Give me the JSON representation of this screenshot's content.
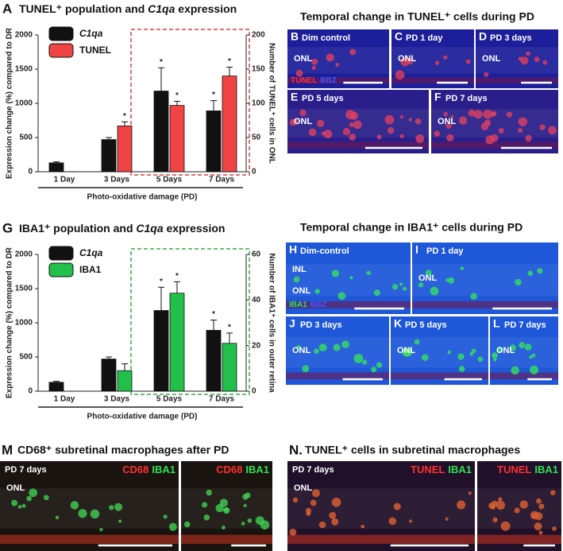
{
  "chart_data": [
    {
      "type": "bar",
      "panel": "A",
      "title": [
        {
          "text": "TUNEL⁺ population and "
        },
        {
          "text": "C1qa",
          "italic": true
        },
        {
          "text": " expression"
        }
      ],
      "ylabel": "Expression change (%) compared to DR",
      "y2label": "Number of TUNEL⁺ cells in ONL",
      "xlabel": "Photo-oxidative damage (PD)",
      "categories": [
        "1 Day",
        "3 Days",
        "5 Days",
        "7 Days"
      ],
      "series": [
        {
          "name": "C1qa",
          "italic": true,
          "color": "#111111",
          "values": [
            130,
            470,
            1180,
            890
          ],
          "errors": [
            15,
            30,
            340,
            150
          ],
          "markers": [
            null,
            null,
            "*",
            "*"
          ]
        },
        {
          "name": "TUNEL",
          "color": "#f04444",
          "axis": "y2",
          "values": [
            0,
            67,
            97,
            140
          ],
          "errors": [
            0,
            6,
            6,
            13
          ],
          "markers": [
            null,
            "*",
            "*",
            "*"
          ]
        }
      ],
      "ylim": [
        0,
        2000
      ],
      "yticks": [
        0,
        500,
        1000,
        1500,
        2000
      ],
      "y2lim": [
        0,
        200
      ],
      "y2ticks": [
        0,
        50,
        100,
        150,
        200
      ],
      "highlight_color": "#d84040"
    },
    {
      "type": "bar",
      "panel": "G",
      "title": [
        {
          "text": "IBA1⁺ population and "
        },
        {
          "text": "C1qa",
          "italic": true
        },
        {
          "text": " expression"
        }
      ],
      "ylabel": "Expression change (%) compared to DR",
      "y2label": "Number of IBA1⁺ cells in outer retina",
      "xlabel": "Photo-oxidative damage (PD)",
      "categories": [
        "1 Day",
        "3 Days",
        "5 Days",
        "7 Days"
      ],
      "series": [
        {
          "name": "C1qa",
          "italic": true,
          "color": "#111111",
          "values": [
            130,
            470,
            1180,
            890
          ],
          "errors": [
            15,
            30,
            340,
            150
          ],
          "markers": [
            null,
            null,
            "*",
            "*"
          ]
        },
        {
          "name": "IBA1",
          "color": "#22c04a",
          "axis": "y2",
          "values": [
            0,
            9,
            43,
            21
          ],
          "errors": [
            0,
            3,
            5,
            4.5
          ],
          "markers": [
            null,
            null,
            "*",
            "*"
          ]
        }
      ],
      "ylim": [
        0,
        2000
      ],
      "yticks": [
        0,
        500,
        1000,
        1500,
        2000
      ],
      "y2lim": [
        0,
        60
      ],
      "y2ticks": [
        0,
        20,
        40,
        60
      ],
      "highlight_color": "#3aa84a"
    }
  ],
  "image_groups": [
    {
      "title": "Temporal change in TUNEL⁺ cells during PD",
      "images": [
        {
          "letter": "B",
          "label": "Dim control",
          "tissue": [
            "ONL"
          ],
          "stains": [
            {
              "text": "TUNEL",
              "color": "#ff3030"
            },
            {
              "text": "BBZ",
              "color": "#3a5cff"
            }
          ]
        },
        {
          "letter": "C",
          "label": "PD 1 day",
          "tissue": [
            "ONL"
          ]
        },
        {
          "letter": "D",
          "label": "PD 3 days",
          "tissue": [
            "ONL"
          ]
        },
        {
          "letter": "E",
          "label": "PD 5 days",
          "tissue": [
            "ONL"
          ]
        },
        {
          "letter": "F",
          "label": "PD 7 days",
          "tissue": [
            "ONL"
          ]
        }
      ]
    },
    {
      "title": "Temporal change in IBA1⁺ cells during PD",
      "images": [
        {
          "letter": "H",
          "label": "Dim-control",
          "tissue": [
            "INL",
            "ONL"
          ],
          "stains": [
            {
              "text": "IBA1",
              "color": "#30e050"
            },
            {
              "text": "BBZ",
              "color": "#3a5cff"
            }
          ]
        },
        {
          "letter": "I",
          "label": "PD 1 day",
          "tissue": [
            "ONL"
          ]
        },
        {
          "letter": "J",
          "label": "PD 3 days",
          "tissue": [
            "ONL"
          ]
        },
        {
          "letter": "K",
          "label": "PD 5 days",
          "tissue": [
            "ONL"
          ]
        },
        {
          "letter": "L",
          "label": "PD 7 days",
          "tissue": [
            "ONL"
          ]
        }
      ]
    },
    {
      "letter": "M",
      "title": "CD68⁺ subretinal macrophages after PD",
      "images": [
        {
          "label": "PD 7 days",
          "tissue": [
            "ONL"
          ],
          "stains": [
            {
              "text": "CD68",
              "color": "#ff3030"
            },
            {
              "text": "IBA1",
              "color": "#30e050"
            }
          ]
        },
        {
          "stains": [
            {
              "text": "CD68",
              "color": "#ff3030"
            },
            {
              "text": "IBA1",
              "color": "#30e050"
            }
          ]
        }
      ]
    },
    {
      "letter": "N.",
      "title": "TUNEL⁺ cells in subretinal macrophages",
      "images": [
        {
          "label": "PD 7 days",
          "tissue": [
            "ONL"
          ],
          "stains": [
            {
              "text": "TUNEL",
              "color": "#ff3030"
            },
            {
              "text": "IBA1",
              "color": "#30e050"
            }
          ]
        },
        {
          "stains": [
            {
              "text": "TUNEL",
              "color": "#ff3030"
            },
            {
              "text": "IBA1",
              "color": "#30e050"
            }
          ]
        }
      ]
    }
  ]
}
